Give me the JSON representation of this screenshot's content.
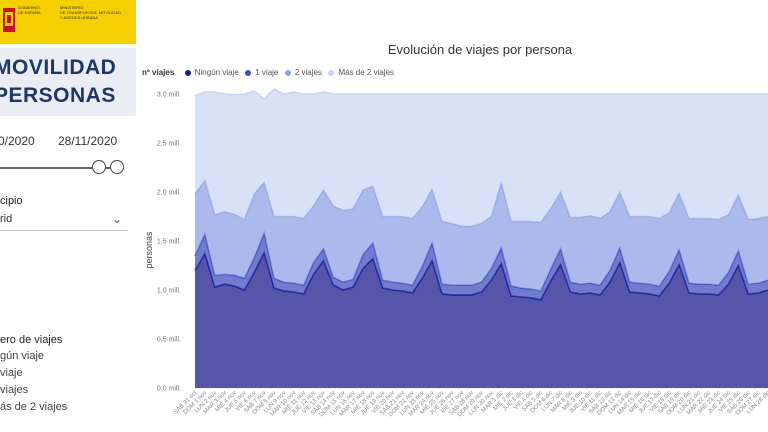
{
  "sidebar": {
    "gov_lines": [
      "GOBIERNO",
      "DE ESPAÑA",
      "MINISTERIO",
      "DE TRANSPORTES, MOVILIDAD",
      "Y AGENDA URBANA"
    ],
    "title_line1": "MOVILIDAD",
    "title_line2": "PERSONAS",
    "date_start": "0/2020",
    "date_end": "28/11/2020",
    "filter_label": "cipio",
    "filter_value": "rid",
    "legend_title": "ero de viajes",
    "legend_items": [
      "gún viaje",
      "viaje",
      "viajes",
      "ás de 2 viajes"
    ]
  },
  "chart_data": {
    "type": "area",
    "stacked": true,
    "title": "Evolución de viajes por persona",
    "legend_title": "nº viajes",
    "legend_position": "top-left",
    "ylabel": "personas",
    "ylim": [
      0,
      3.0
    ],
    "yticks": [
      "0,0 mill.",
      "0,5 mill.",
      "1,0 mill.",
      "1,5 mill.",
      "2,0 mill.",
      "2,5 mill.",
      "3,0 mill."
    ],
    "ytick_values": [
      0,
      0.5,
      1.0,
      1.5,
      2.0,
      2.5,
      3.0
    ],
    "categories": [
      "SÁB 31 oct",
      "DOM 1 nov",
      "LUN 2 nov",
      "MAR 3 nov",
      "MIÉ 4 nov",
      "JUE 5 nov",
      "VIE 6 nov",
      "SÁB 7 nov",
      "DOM 8 nov",
      "LUN 9 nov",
      "MAR 10 nov",
      "MIÉ 11 nov",
      "JUE 12 nov",
      "VIE 13 nov",
      "SÁB 14 nov",
      "DOM 15 nov",
      "LUN 16 nov",
      "MAR 17 nov",
      "MIÉ 18 nov",
      "JUE 19 nov",
      "VIE 20 nov",
      "SÁB 21 nov",
      "DOM 22 nov",
      "LUN 23 nov",
      "MAR 24 nov",
      "MIÉ 25 nov",
      "JUE 26 nov",
      "VIE 27 nov",
      "SÁB 28 nov",
      "DOM 29 nov",
      "LUN 30 nov",
      "MAR 1 dic",
      "MIÉ 2 dic",
      "JUE 3 dic",
      "VIE 4 dic",
      "SÁB 5 dic",
      "DOM 6 dic",
      "LUN 7 dic",
      "MAR 8 dic",
      "MIÉ 9 dic",
      "JUE 10 dic",
      "VIE 11 dic",
      "SÁB 12 dic",
      "DOM 13 dic",
      "LUN 14 dic",
      "MAR 15 dic",
      "MIÉ 16 dic",
      "JUE 17 dic",
      "VIE 18 dic",
      "SÁB 19 dic",
      "DOM 20 dic",
      "LUN 21 dic",
      "MAR 22 dic",
      "MIÉ 23 dic",
      "JUE 24 dic",
      "VIE 25 dic",
      "SÁB 26 dic",
      "DOM 27 dic",
      "LUN 28 dic"
    ],
    "series": [
      {
        "name": "Ningún viaje",
        "color": "#1c1c8c",
        "values": [
          1.2,
          1.37,
          1.03,
          1.06,
          1.04,
          1.0,
          1.18,
          1.38,
          1.02,
          0.99,
          0.98,
          0.96,
          1.16,
          1.3,
          1.05,
          1.0,
          1.03,
          1.22,
          1.32,
          1.02,
          1.0,
          0.99,
          0.97,
          1.12,
          1.3,
          0.96,
          0.95,
          0.95,
          0.95,
          0.98,
          1.1,
          1.27,
          0.94,
          0.93,
          0.92,
          0.9,
          1.09,
          1.26,
          0.98,
          0.96,
          0.97,
          0.95,
          1.08,
          1.28,
          0.98,
          0.97,
          0.96,
          0.94,
          1.07,
          1.26,
          0.97,
          0.96,
          0.96,
          0.95,
          1.06,
          1.25,
          0.96,
          0.97,
          1.0
        ]
      },
      {
        "name": "1 viaje",
        "color": "#4050c0",
        "values": [
          0.15,
          0.2,
          0.12,
          0.1,
          0.11,
          0.12,
          0.15,
          0.2,
          0.1,
          0.09,
          0.09,
          0.09,
          0.12,
          0.12,
          0.08,
          0.08,
          0.08,
          0.14,
          0.16,
          0.08,
          0.08,
          0.08,
          0.08,
          0.12,
          0.18,
          0.1,
          0.1,
          0.1,
          0.1,
          0.1,
          0.12,
          0.16,
          0.1,
          0.09,
          0.09,
          0.09,
          0.12,
          0.16,
          0.1,
          0.1,
          0.1,
          0.1,
          0.12,
          0.15,
          0.1,
          0.1,
          0.1,
          0.1,
          0.12,
          0.15,
          0.1,
          0.1,
          0.1,
          0.1,
          0.12,
          0.15,
          0.1,
          0.1,
          0.1
        ]
      },
      {
        "name": "2 viajes",
        "color": "#8fa3e6",
        "values": [
          0.63,
          0.55,
          0.62,
          0.64,
          0.62,
          0.6,
          0.65,
          0.52,
          0.63,
          0.67,
          0.68,
          0.68,
          0.58,
          0.6,
          0.73,
          0.73,
          0.72,
          0.66,
          0.58,
          0.65,
          0.67,
          0.68,
          0.68,
          0.61,
          0.55,
          0.64,
          0.63,
          0.6,
          0.6,
          0.6,
          0.53,
          0.67,
          0.66,
          0.68,
          0.69,
          0.7,
          0.62,
          0.58,
          0.66,
          0.68,
          0.69,
          0.68,
          0.6,
          0.57,
          0.67,
          0.68,
          0.69,
          0.69,
          0.6,
          0.58,
          0.66,
          0.67,
          0.67,
          0.67,
          0.59,
          0.57,
          0.66,
          0.66,
          0.65
        ]
      },
      {
        "name": "Más de 2 viajes",
        "color": "#c9d7f5",
        "values": [
          1.0,
          0.9,
          1.25,
          1.2,
          1.22,
          1.28,
          1.05,
          0.85,
          1.3,
          1.25,
          1.27,
          1.27,
          1.14,
          1.0,
          1.14,
          1.19,
          1.17,
          0.98,
          0.94,
          1.25,
          1.25,
          1.25,
          1.27,
          1.15,
          0.97,
          1.3,
          1.32,
          1.35,
          1.35,
          1.32,
          1.25,
          0.9,
          1.3,
          1.3,
          1.3,
          1.31,
          1.17,
          1.0,
          1.26,
          1.26,
          1.24,
          1.27,
          1.2,
          1.0,
          1.25,
          1.25,
          1.25,
          1.27,
          1.21,
          1.01,
          1.27,
          1.27,
          1.27,
          1.28,
          1.23,
          1.03,
          1.28,
          1.27,
          1.25
        ]
      }
    ]
  }
}
